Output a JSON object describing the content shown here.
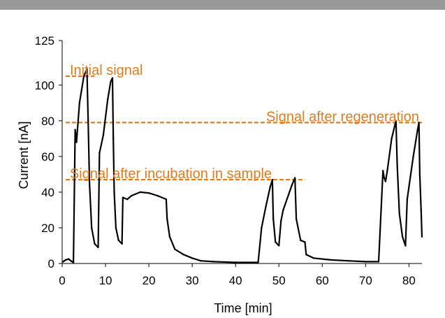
{
  "chart_data": {
    "type": "line",
    "xlabel": "Time [min]",
    "ylabel": "Current  [nA]",
    "xlim": [
      0,
      83
    ],
    "ylim": [
      0,
      125
    ],
    "x_ticks": [
      0,
      10,
      20,
      30,
      40,
      50,
      60,
      70,
      80
    ],
    "y_ticks": [
      0,
      20,
      40,
      60,
      80,
      100,
      125
    ],
    "grid": false,
    "annotation_color": "#E07B1F",
    "line_color": "#000000",
    "reference_lines": [
      {
        "label": "Initial signal",
        "y": 105,
        "x_start": 0.8,
        "x_end": 7.5
      },
      {
        "label": "Signal after regeneration",
        "y": 79,
        "x_start": 0.8,
        "x_end": 83
      },
      {
        "label": "Signal after incubation in sample",
        "y": 47,
        "x_start": 0.8,
        "x_end": 56
      }
    ],
    "series": [
      {
        "values": [
          [
            0.2,
            1
          ],
          [
            0.8,
            2
          ],
          [
            1.5,
            2.5
          ],
          [
            2,
            1.5
          ],
          [
            2.6,
            0.5
          ],
          [
            3,
            75
          ],
          [
            3.3,
            68
          ],
          [
            4,
            90
          ],
          [
            5,
            105
          ],
          [
            5.7,
            109
          ],
          [
            6,
            80
          ],
          [
            6.3,
            45
          ],
          [
            6.8,
            20
          ],
          [
            7.5,
            11
          ],
          [
            8.3,
            9
          ],
          [
            8.6,
            62
          ],
          [
            9.5,
            72
          ],
          [
            10.5,
            92
          ],
          [
            11.2,
            102
          ],
          [
            11.6,
            104
          ],
          [
            11.8,
            70
          ],
          [
            12,
            40
          ],
          [
            12.4,
            20
          ],
          [
            13,
            13
          ],
          [
            13.8,
            11
          ],
          [
            14,
            37
          ],
          [
            15,
            36
          ],
          [
            16,
            38
          ],
          [
            18,
            40
          ],
          [
            20,
            39.5
          ],
          [
            22,
            38
          ],
          [
            24,
            36
          ],
          [
            24.2,
            25
          ],
          [
            24.8,
            15
          ],
          [
            26,
            8
          ],
          [
            28,
            5
          ],
          [
            30,
            3
          ],
          [
            32,
            1.5
          ],
          [
            35,
            1
          ],
          [
            40,
            0.6
          ],
          [
            45.2,
            0.6
          ],
          [
            46,
            20
          ],
          [
            47,
            32
          ],
          [
            48,
            43
          ],
          [
            48.5,
            47
          ],
          [
            48.7,
            25
          ],
          [
            49.2,
            12
          ],
          [
            50,
            10
          ],
          [
            50.5,
            24
          ],
          [
            51,
            30
          ],
          [
            53,
            44
          ],
          [
            53.7,
            48
          ],
          [
            54,
            25
          ],
          [
            55,
            13
          ],
          [
            56,
            12
          ],
          [
            56.3,
            5
          ],
          [
            58,
            3
          ],
          [
            62,
            2
          ],
          [
            66,
            1.5
          ],
          [
            70,
            1
          ],
          [
            73,
            1
          ],
          [
            74,
            52
          ],
          [
            74.3,
            48
          ],
          [
            74.6,
            46
          ],
          [
            75,
            52
          ],
          [
            76,
            70
          ],
          [
            77,
            80
          ],
          [
            77.3,
            55
          ],
          [
            77.8,
            28
          ],
          [
            78.5,
            15
          ],
          [
            79.2,
            10
          ],
          [
            79.6,
            36
          ],
          [
            80,
            43
          ],
          [
            81,
            60
          ],
          [
            82,
            75
          ],
          [
            82.3,
            79
          ],
          [
            82.5,
            50
          ],
          [
            82.8,
            30
          ],
          [
            83,
            15
          ]
        ]
      }
    ]
  }
}
